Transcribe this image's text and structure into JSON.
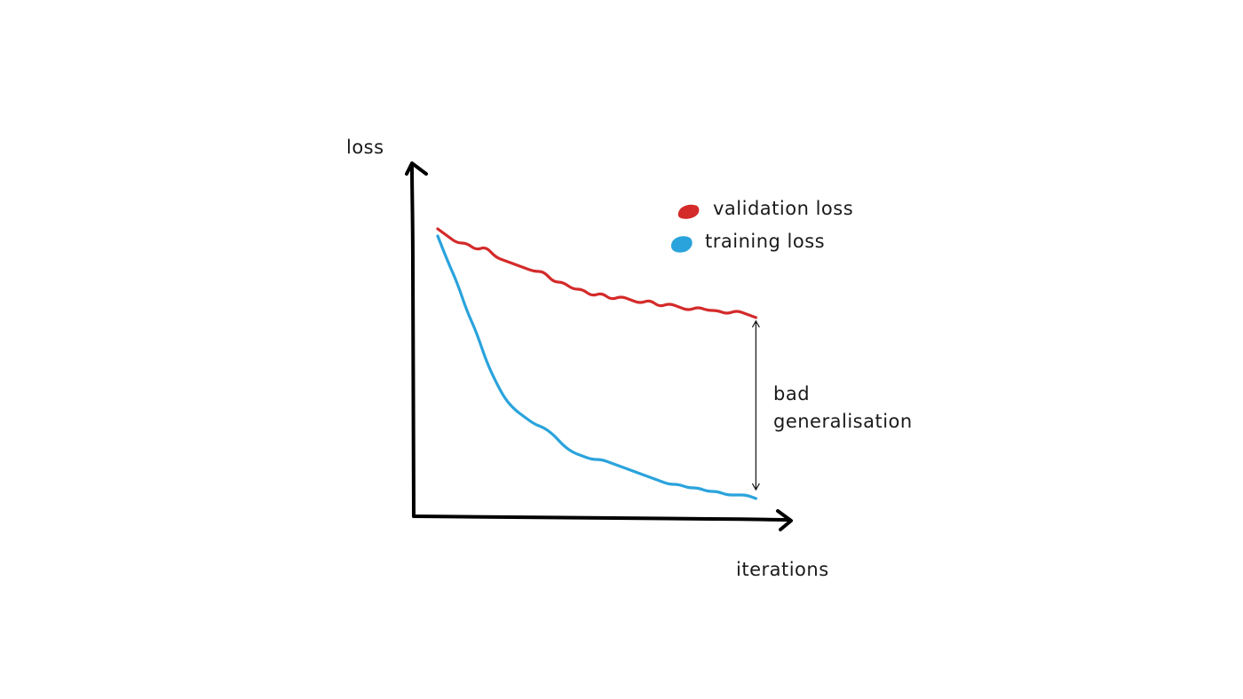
{
  "chart_data": {
    "type": "line",
    "title": "",
    "xlabel": "iterations",
    "ylabel": "loss",
    "xlim": [
      0,
      100
    ],
    "ylim": [
      0,
      100
    ],
    "grid": false,
    "legend_position": "top-right",
    "x": [
      0,
      3,
      6,
      9,
      12,
      15,
      18,
      21,
      24,
      27,
      30,
      33,
      36,
      39,
      42,
      45,
      48,
      51,
      54,
      57,
      60,
      63,
      66,
      69,
      72,
      75,
      78,
      81,
      84,
      87,
      90,
      93,
      96,
      99
    ],
    "series": [
      {
        "name": "validation loss",
        "color": "#d42a2a",
        "legend_marker": "red-blob",
        "values": [
          81,
          79,
          77,
          77,
          75,
          76,
          73,
          72,
          71,
          70,
          69,
          69,
          66,
          66,
          64,
          64,
          62,
          63,
          61,
          62,
          61,
          60,
          61,
          59,
          60,
          59,
          58,
          59,
          58,
          58,
          57,
          58,
          57,
          56
        ]
      },
      {
        "name": "training loss",
        "color": "#2aa3dc",
        "legend_marker": "blue-blob",
        "values": [
          79,
          72,
          66,
          58,
          52,
          44,
          38,
          33,
          30,
          28,
          26,
          25,
          23,
          20,
          18,
          17,
          16,
          16,
          15,
          14,
          13,
          12,
          11,
          10,
          9,
          9,
          8,
          8,
          7,
          7,
          6,
          6,
          6,
          5
        ]
      }
    ],
    "annotations": [
      {
        "name": "gap-label",
        "lines": [
          "bad",
          "generalisation"
        ],
        "at_x": 99
      }
    ]
  }
}
